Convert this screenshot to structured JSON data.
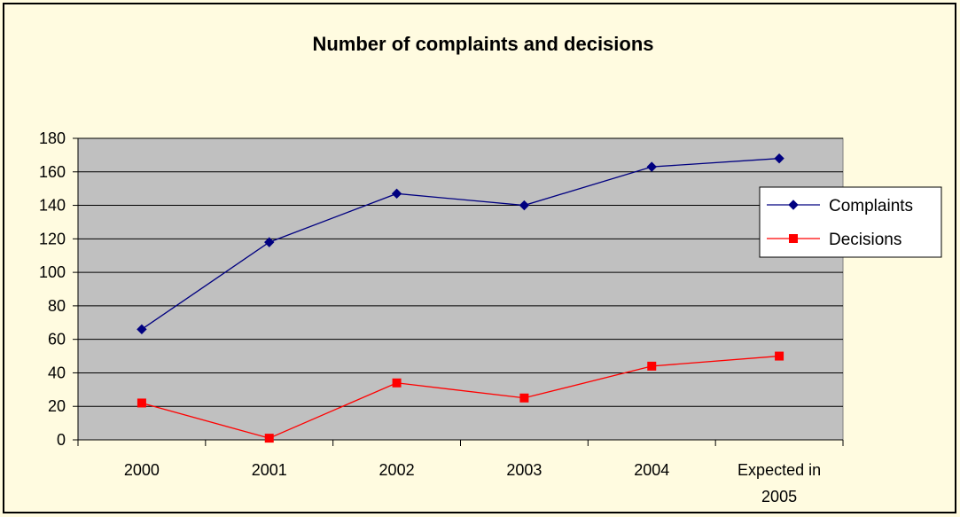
{
  "chart_data": {
    "type": "line",
    "title": "Number of complaints and decisions",
    "categories": [
      "2000",
      "2001",
      "2002",
      "2003",
      "2004",
      "Expected in 2005"
    ],
    "category_lines": [
      [
        "2000"
      ],
      [
        "2001"
      ],
      [
        "2002"
      ],
      [
        "2003"
      ],
      [
        "2004"
      ],
      [
        "Expected in",
        "2005"
      ]
    ],
    "ylim": [
      0,
      180
    ],
    "yticks": [
      0,
      20,
      40,
      60,
      80,
      100,
      120,
      140,
      160,
      180
    ],
    "grid": true,
    "legend_position": "right",
    "series": [
      {
        "name": "Complaints",
        "marker": "diamond",
        "color": "#000080",
        "values": [
          66,
          118,
          147,
          140,
          163,
          168
        ]
      },
      {
        "name": "Decisions",
        "marker": "square",
        "color": "#ff0000",
        "values": [
          22,
          1,
          34,
          25,
          44,
          50
        ]
      }
    ],
    "plot_background": "#c0c0c0",
    "page_background": "#fffbe0"
  }
}
